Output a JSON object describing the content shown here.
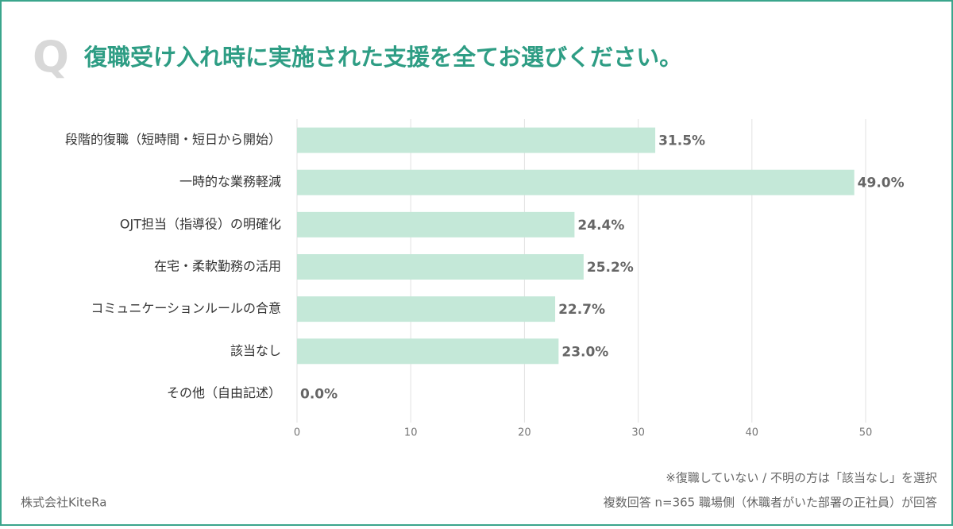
{
  "chart_data": {
    "type": "hbar",
    "question_mark": "Q",
    "title": "復職受け入れ時に実施された支援を全てお選びください。",
    "categories": [
      "段階的復職（短時間・短日から開始）",
      "一時的な業務軽減",
      "OJT担当（指導役）の明確化",
      "在宅・柔軟勤務の活用",
      "コミュニケーションルールの合意",
      "該当なし",
      "その他（自由記述）"
    ],
    "values": [
      31.5,
      49.0,
      24.4,
      25.2,
      22.7,
      23.0,
      0.0
    ],
    "value_labels": [
      "31.5%",
      "49.0%",
      "24.4%",
      "25.2%",
      "22.7%",
      "23.0%",
      "0.0%"
    ],
    "color": "#c4e8d8",
    "xlim": [
      0,
      50
    ],
    "xticks": [
      0,
      10,
      20,
      30,
      40,
      50
    ],
    "grid": true,
    "notes": [
      "※復職していない / 不明の方は「該当なし」を選択",
      "複数回答 n=365 職場側（休職者がいた部署の正社員）が回答"
    ],
    "source": "株式会社KiteRa"
  }
}
